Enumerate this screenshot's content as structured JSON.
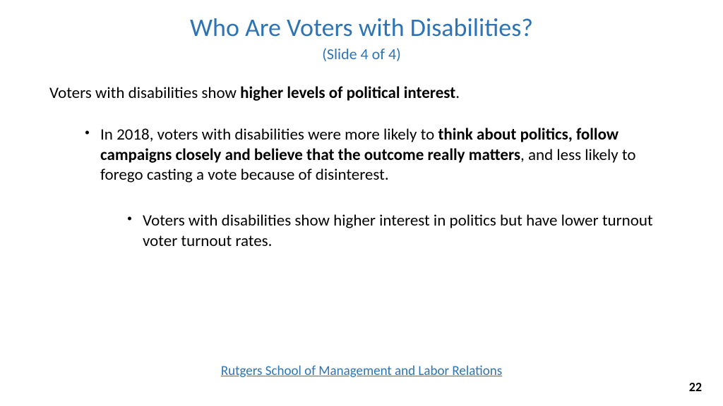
{
  "title": "Who Are Voters with Disabilities?",
  "subtitle": "(Slide 4 of 4)",
  "intro_plain": "Voters with disabilities show ",
  "intro_bold": "higher levels of political interest",
  "intro_tail": ".",
  "b1_a": "In 2018, voters with disabilities were more likely to ",
  "b1_bold": "think about politics, follow campaigns closely and believe that the outcome really matters",
  "b1_c": ", and less likely to forego casting a vote because of disinterest.",
  "b2": "Voters with disabilities show higher interest in politics but have lower turnout voter turnout rates.",
  "link_text": "Rutgers School of Management and Labor Relations",
  "page_number": "22",
  "colors": {
    "title": "#2e74b5",
    "link": "#2e74b5",
    "body": "#000000",
    "background": "#ffffff"
  },
  "fontsize": {
    "title": 36,
    "subtitle": 22,
    "body": 23,
    "link": 19,
    "pagenum": 18
  }
}
